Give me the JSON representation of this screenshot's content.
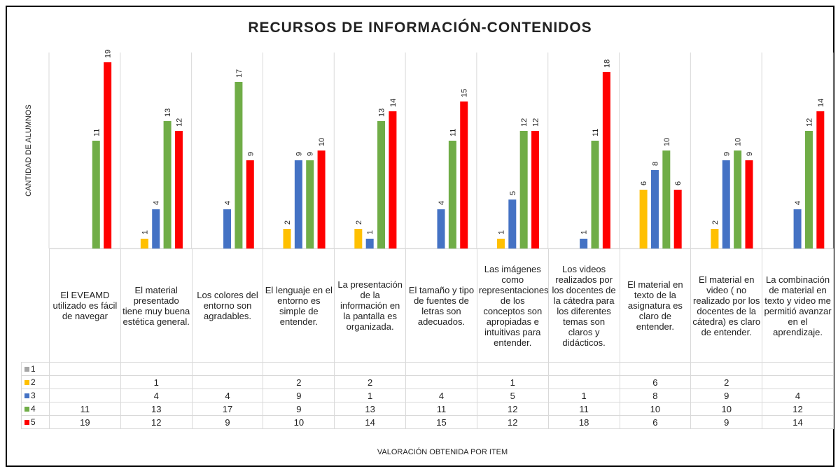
{
  "chart_data": {
    "type": "bar",
    "title": "RECURSOS DE INFORMACIÓN-CONTENIDOS",
    "y_label": "CANTIDAD DE ALUMNOS",
    "x_label": "VALORACIÓN OBTENIDA POR ITEM",
    "categories": [
      "El EVEAMD utilizado es fácil de navegar",
      "El material presentado tiene muy buena estética general.",
      "Los colores del entorno son agradables.",
      "El lenguaje en el entorno es simple de entender.",
      "La presentación de la información en la pantalla es organizada.",
      "El tamaño y tipo de fuentes de letras son adecuados.",
      "Las imágenes como representaciones de los conceptos son apropiadas e intuitivas para entender.",
      "Los videos realizados por los docentes de la cátedra para los diferentes temas son claros y didácticos.",
      "El material en texto de la asignatura es claro de entender.",
      "El material en video ( no realizado por los docentes de la cátedra) es claro de entender.",
      "La combinación de material en texto y video me permitió avanzar en el aprendizaje."
    ],
    "ylim": [
      0,
      20
    ],
    "series": [
      {
        "name": "1",
        "color": "#a5a5a5",
        "values": [
          null,
          null,
          null,
          null,
          null,
          null,
          null,
          null,
          null,
          null,
          null
        ]
      },
      {
        "name": "2",
        "color": "#ffc000",
        "values": [
          null,
          1,
          null,
          2,
          2,
          null,
          1,
          null,
          6,
          2,
          null
        ]
      },
      {
        "name": "3",
        "color": "#4472c4",
        "values": [
          null,
          4,
          4,
          9,
          1,
          4,
          5,
          1,
          8,
          9,
          4
        ]
      },
      {
        "name": "4",
        "color": "#70ad47",
        "values": [
          11,
          13,
          17,
          9,
          13,
          11,
          12,
          11,
          10,
          10,
          12
        ]
      },
      {
        "name": "5",
        "color": "#ff0000",
        "values": [
          19,
          12,
          9,
          10,
          14,
          15,
          12,
          18,
          6,
          9,
          14
        ]
      }
    ]
  }
}
